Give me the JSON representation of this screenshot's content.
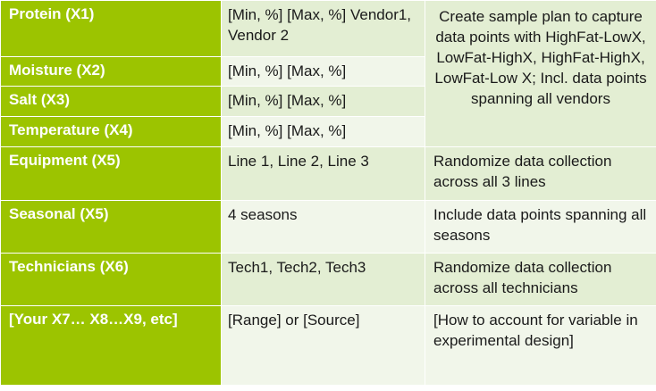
{
  "rows": [
    {
      "factor": "Protein (X1)",
      "range": "[Min, %] [Max, %] Vendor1, Vendor 2",
      "plan": "Create sample plan to capture data points with HighFat-LowX, LowFat-HighX, HighFat-HighX, LowFat-Low X; Incl. data points spanning all vendors"
    },
    {
      "factor": "Moisture (X2)",
      "range": "[Min, %] [Max, %]"
    },
    {
      "factor": "Salt (X3)",
      "range": "[Min, %] [Max, %]"
    },
    {
      "factor": "Temperature (X4)",
      "range": "[Min, %] [Max, %]"
    },
    {
      "factor": "Equipment (X5)",
      "range": "Line 1, Line 2, Line 3",
      "plan": "Randomize data collection across all 3 lines"
    },
    {
      "factor": "Seasonal (X5)",
      "range": "4 seasons",
      "plan": "Include data points spanning all seasons"
    },
    {
      "factor": "Technicians (X6)",
      "range": "Tech1, Tech2, Tech3",
      "plan": "Randomize data collection across all technicians"
    },
    {
      "factor": "[Your X7… X8…X9, etc]",
      "range": "[Range] or [Source]",
      "plan": "[How to account for variable in experimental design]"
    }
  ],
  "colors": {
    "header_green": "#9cc400",
    "row_dark": "#e3eed3",
    "row_light": "#f1f6ea",
    "factor_text": "#ffffff",
    "body_text": "#1a1a1a"
  }
}
